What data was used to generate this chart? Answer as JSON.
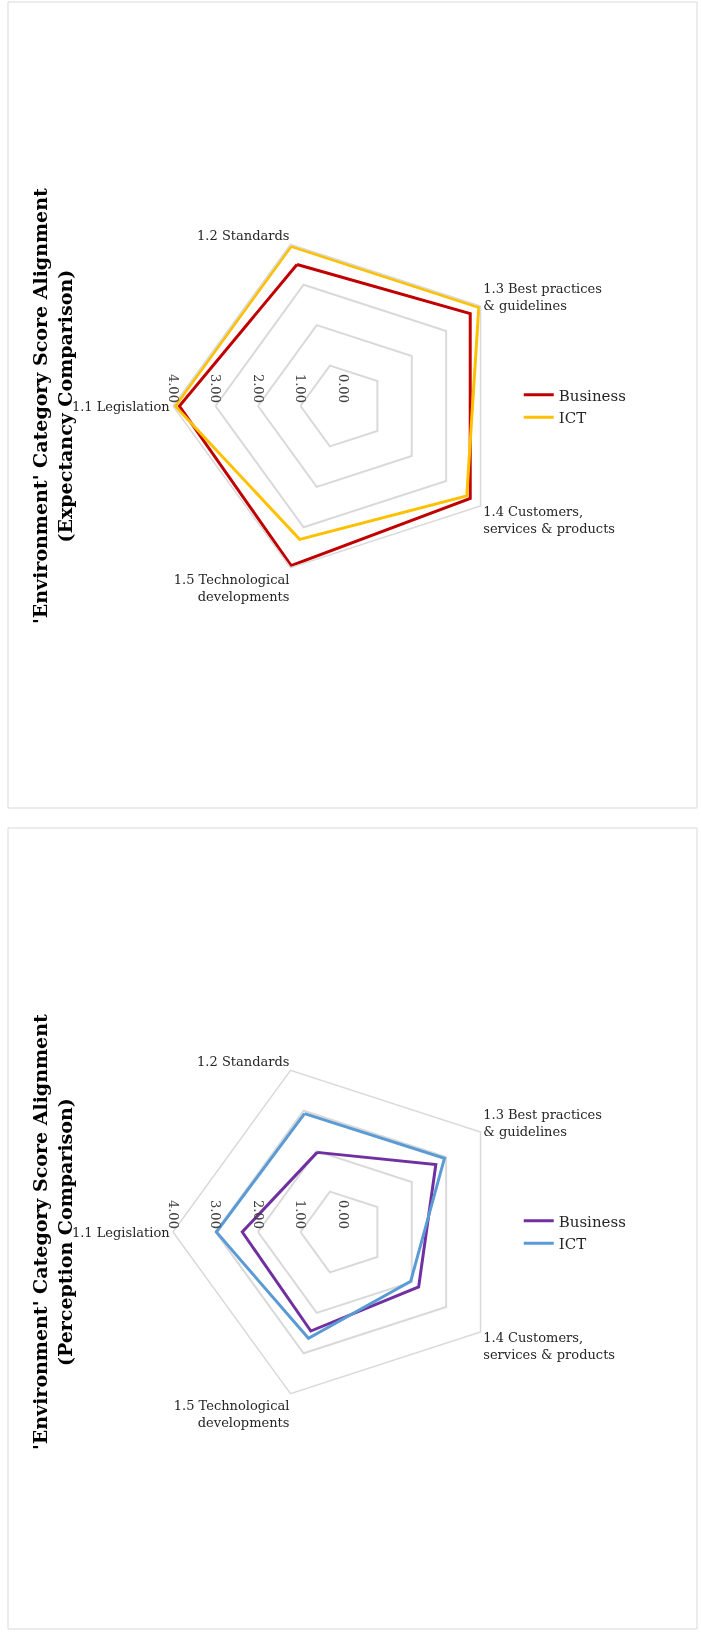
{
  "chart_data": [
    {
      "type": "radar",
      "title": "'Environment' Category Score Alignment (Expectancy Comparison)",
      "categories": [
        "1.2 Standards",
        "1.3 Best practices & guidelines",
        "1.4 Customers, services & products",
        "1.5 Technological developments",
        "1.1 Legislation"
      ],
      "series": [
        {
          "name": "Business",
          "color": "#c00000",
          "values": [
            3.5,
            3.7,
            3.7,
            3.95,
            3.85
          ]
        },
        {
          "name": "ICT",
          "color": "#ffc000",
          "values": [
            3.95,
            3.95,
            3.6,
            3.3,
            3.95
          ]
        }
      ],
      "ylim": [
        0,
        4
      ],
      "yticks": [
        {
          "value": 0,
          "label": "0.00"
        },
        {
          "value": 1,
          "label": "1.00"
        },
        {
          "value": 2,
          "label": "2.00"
        },
        {
          "value": 3,
          "label": "3.00"
        },
        {
          "value": 4,
          "label": "4.00"
        }
      ],
      "grid": "y",
      "legend": "right",
      "marker": "none",
      "line_style": "solid"
    },
    {
      "type": "radar",
      "title": "'Environment' Category Score Alignment (Perception Comparison)",
      "categories": [
        "1.2 Standards",
        "1.3 Best practices & guidelines",
        "1.4 Customers, services & products",
        "1.5 Technological developments",
        "1.1 Legislation"
      ],
      "series": [
        {
          "name": "Business",
          "color": "#7030a0",
          "values": [
            1.97,
            2.7,
            2.2,
            2.45,
            2.37
          ]
        },
        {
          "name": "ICT",
          "color": "#5b9bd5",
          "values": [
            2.93,
            2.95,
            1.97,
            2.63,
            2.98
          ]
        }
      ],
      "ylim": [
        0,
        4
      ],
      "yticks": [
        {
          "value": 0,
          "label": "0.00"
        },
        {
          "value": 1,
          "label": "1.00"
        },
        {
          "value": 2,
          "label": "2.00"
        },
        {
          "value": 3,
          "label": "3.00"
        },
        {
          "value": 4,
          "label": "4.00"
        }
      ],
      "grid": "y",
      "legend": "right",
      "marker": "none",
      "line_style": "solid"
    }
  ]
}
